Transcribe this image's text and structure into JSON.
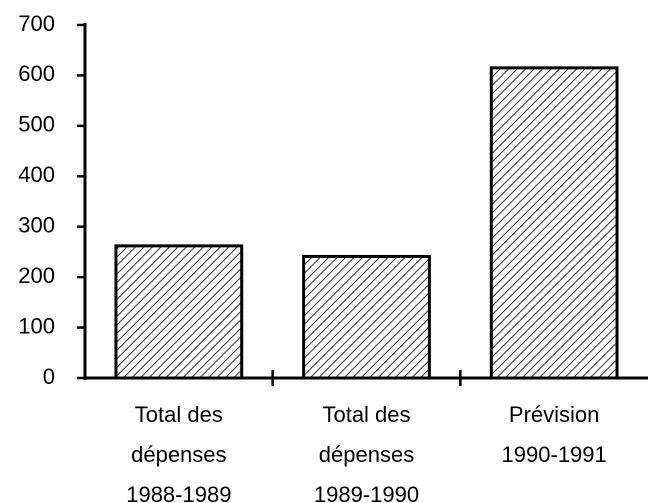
{
  "chart_data": {
    "type": "bar",
    "categories": [
      "Total des\ndépenses\n1988-1989",
      "Total des\ndépenses\n1989-1990",
      "Prévision\n1990-1991"
    ],
    "values": [
      262,
      241,
      615
    ],
    "color": "#000000",
    "ylim": [
      0,
      700
    ],
    "yticks": [
      0,
      100,
      200,
      300,
      400,
      500,
      600,
      700
    ],
    "grid": false
  }
}
